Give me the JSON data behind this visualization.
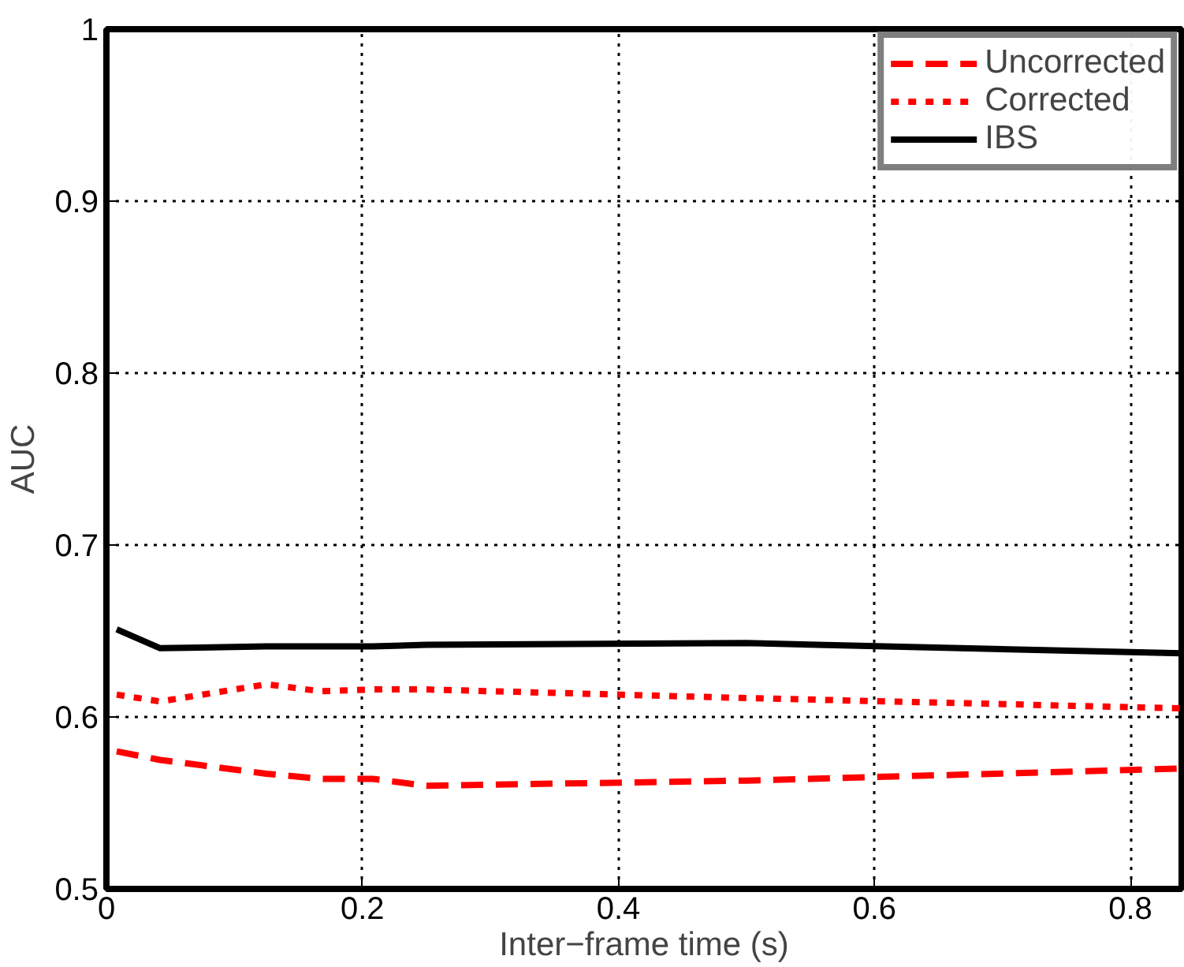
{
  "chart_data": {
    "type": "line",
    "xlabel": "Inter−frame time (s)",
    "ylabel": "AUC",
    "x": [
      0.008,
      0.042,
      0.125,
      0.167,
      0.208,
      0.25,
      0.5,
      0.84
    ],
    "series": [
      {
        "name": "Uncorrected",
        "color": "#ff0000",
        "line_style": "dashed",
        "values": [
          0.58,
          0.575,
          0.567,
          0.564,
          0.564,
          0.56,
          0.563,
          0.57
        ]
      },
      {
        "name": "Corrected",
        "color": "#ff0000",
        "line_style": "dotted",
        "values": [
          0.613,
          0.609,
          0.619,
          0.615,
          0.616,
          0.616,
          0.611,
          0.605
        ]
      },
      {
        "name": "IBS",
        "color": "#000000",
        "line_style": "solid",
        "values": [
          0.651,
          0.64,
          0.641,
          0.641,
          0.641,
          0.642,
          0.643,
          0.637
        ]
      }
    ],
    "xlim": [
      0,
      0.84
    ],
    "ylim": [
      0.5,
      1
    ],
    "xticks": [
      0,
      0.2,
      0.4,
      0.6,
      0.8
    ],
    "yticks": [
      0.5,
      0.6,
      0.7,
      0.8,
      0.9,
      1
    ],
    "grid": true,
    "legend": "top right"
  }
}
